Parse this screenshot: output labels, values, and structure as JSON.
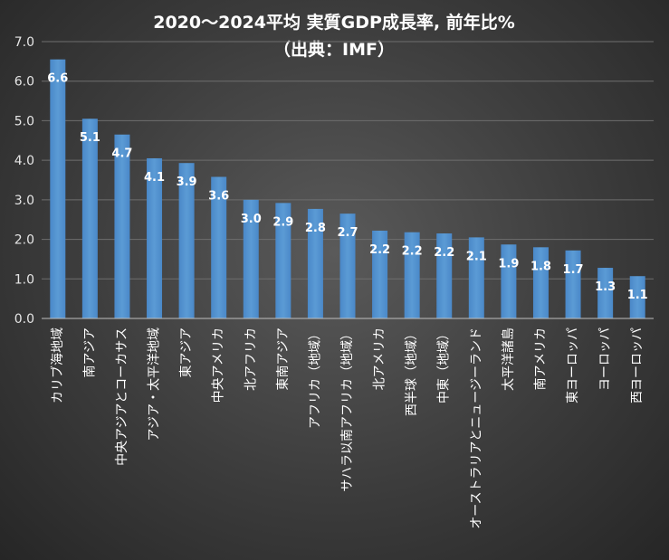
{
  "chart_data": {
    "type": "bar",
    "title": "2020～2024平均 実質GDP成長率, 前年比%",
    "subtitle": "（出典：IMF）",
    "xlabel": "",
    "ylabel": "",
    "ylim": [
      0,
      7
    ],
    "ytick_step": 1,
    "ytick_labels": [
      "0.0",
      "1.0",
      "2.0",
      "3.0",
      "4.0",
      "5.0",
      "6.0",
      "7.0"
    ],
    "grid": true,
    "legend": "none",
    "bar_color": "#5b9bd5",
    "categories": [
      "カリブ海地域",
      "南アジア",
      "中央アジアとコーカサス",
      "アジア・太平洋地域",
      "東アジア",
      "中央アメリカ",
      "北アフリカ",
      "東南アジア",
      "アフリカ（地域）",
      "サハラ以南アフリカ（地域）",
      "北アメリカ",
      "西半球（地域）",
      "中東（地域）",
      "オーストラリアとニュージーランド",
      "太平洋諸島",
      "南アメリカ",
      "東ヨーロッパ",
      "ヨーロッパ",
      "西ヨーロッパ"
    ],
    "values": [
      6.55,
      5.05,
      4.65,
      4.05,
      3.93,
      3.58,
      3.0,
      2.92,
      2.77,
      2.65,
      2.22,
      2.18,
      2.15,
      2.05,
      1.87,
      1.8,
      1.72,
      1.28,
      1.07
    ],
    "data_labels": [
      "6.6",
      "5.1",
      "4.7",
      "4.1",
      "3.9",
      "3.6",
      "3.0",
      "2.9",
      "2.8",
      "2.7",
      "2.2",
      "2.2",
      "2.2",
      "2.1",
      "1.9",
      "1.8",
      "1.7",
      "1.3",
      "1.1"
    ]
  }
}
